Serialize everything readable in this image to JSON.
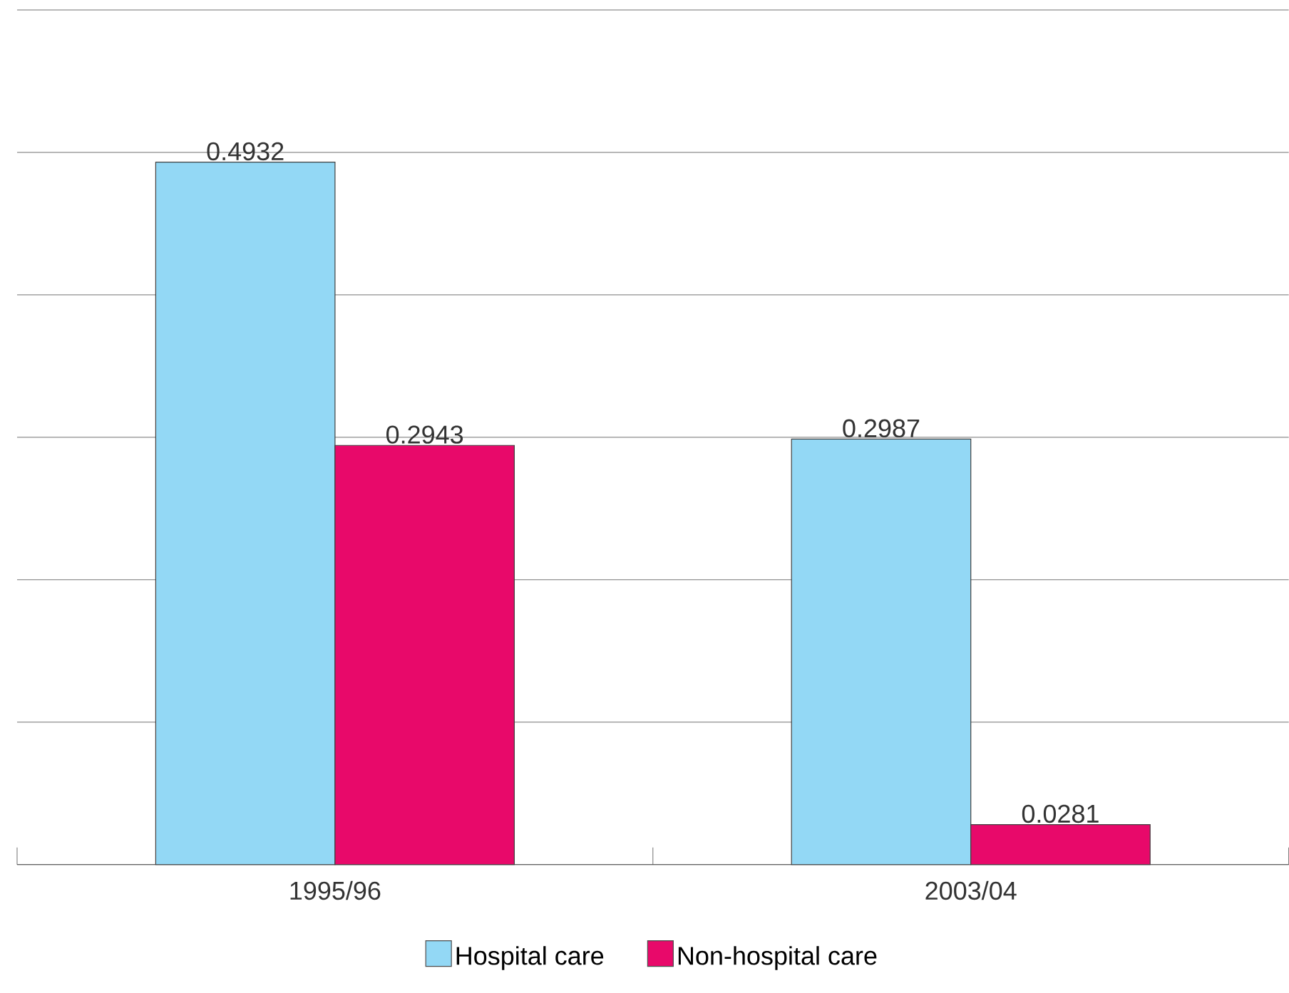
{
  "chart_data": {
    "type": "bar",
    "categories": [
      "1995/96",
      "2003/04"
    ],
    "series": [
      {
        "name": "Hospital care",
        "color": "#93d8f5",
        "values": [
          0.4932,
          0.2987
        ],
        "value_labels": [
          "0.4932",
          "0.2987"
        ]
      },
      {
        "name": "Non-hospital care",
        "color": "#e8096a",
        "values": [
          0.2943,
          0.0281
        ],
        "value_labels": [
          "0.2943",
          "0.0281"
        ]
      }
    ],
    "ylim": [
      0,
      0.6
    ],
    "yticks": [
      {
        "value": 0,
        "label": null
      },
      {
        "value": 0.1,
        "label": null
      },
      {
        "value": 0.2,
        "label": null
      },
      {
        "value": 0.3,
        "label": null
      },
      {
        "value": 0.4,
        "label": null
      },
      {
        "value": 0.5,
        "label": null
      },
      {
        "value": 0.6,
        "label": null
      }
    ],
    "grid": "y",
    "legend": "bottom",
    "tick_labels": "x"
  }
}
